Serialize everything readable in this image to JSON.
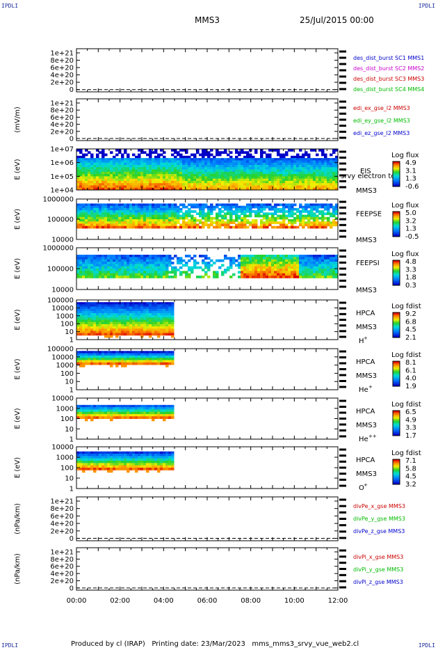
{
  "corners": {
    "tl": "IPDLI",
    "tr": "IPDLI",
    "bl": "IPDLI",
    "br": "IPDLI"
  },
  "header": {
    "mission": "MMS3",
    "datetime": "25/Jul/2015 00:00"
  },
  "footer": {
    "text": "Produced by cl (IRAP)   Printing date: 23/Mar/2023   mms_mms3_srvy_vue_web2.cl"
  },
  "colors": {
    "blue": "#0000cc",
    "magenta": "#cc00cc",
    "red": "#cc0000",
    "green": "#00bb00"
  },
  "chart_data": [
    {
      "type": "line",
      "panel": "des_dist_burst",
      "ylabel": "",
      "yticks": [
        "1e+21",
        "8e+20",
        "6e+20",
        "4e+20",
        "2e+20",
        "0"
      ],
      "legend": [
        {
          "name": "des_dist_burst SC1 MMS1",
          "color": "blue"
        },
        {
          "name": "des_dist_burst SC2 MMS2",
          "color": "magenta"
        },
        {
          "name": "des_dist_burst SC3 MMS3",
          "color": "red"
        },
        {
          "name": "des_dist_burst SC4 MMS4",
          "color": "green"
        }
      ]
    },
    {
      "type": "line",
      "panel": "edi",
      "ylabel": "(mV/m)",
      "yticks": [
        "1e+21",
        "8e+20",
        "6e+20",
        "4e+20",
        "2e+20",
        "0"
      ],
      "legend": [
        {
          "name": "edi_ex_gse_l2 MMS3",
          "color": "red"
        },
        {
          "name": "edi_ey_gse_l2 MMS3",
          "color": "green"
        },
        {
          "name": "edi_ez_gse_l2 MMS3",
          "color": "blue"
        }
      ]
    },
    {
      "type": "heatmap",
      "panel": "eis",
      "ylabel": "E (eV)",
      "yticks": [
        "1e+07",
        "1e+06",
        "1e+05",
        "1e+04"
      ],
      "right_labels": [
        "EIS",
        "srvy electron to",
        "MMS3"
      ],
      "colorbar": {
        "title": "Log flux",
        "ticks": [
          "4.9",
          "3.1",
          "1.3",
          "-0.6"
        ]
      }
    },
    {
      "type": "heatmap",
      "panel": "feepse",
      "ylabel": "E (eV)",
      "yticks": [
        "1000000",
        "100000",
        "10000"
      ],
      "right_labels": [
        "FEEPSE",
        "MMS3"
      ],
      "colorbar": {
        "title": "Log flux",
        "ticks": [
          "5.0",
          "3.2",
          "1.3",
          "-0.5"
        ]
      }
    },
    {
      "type": "heatmap",
      "panel": "feepsi",
      "ylabel": "E (eV)",
      "yticks": [
        "1000000",
        "100000",
        "10000"
      ],
      "right_labels": [
        "FEEPSI",
        "MMS3"
      ],
      "colorbar": {
        "title": "Log flux",
        "ticks": [
          "4.8",
          "3.3",
          "1.8",
          "0.3"
        ]
      }
    },
    {
      "type": "heatmap",
      "panel": "hpca_h",
      "ylabel": "E (eV)",
      "yticks": [
        "100000",
        "10000",
        "1000",
        "100",
        "10",
        "1"
      ],
      "right_labels": [
        "HPCA",
        "MMS3",
        "H+"
      ],
      "colorbar": {
        "title": "Log fdist",
        "ticks": [
          "9.2",
          "6.8",
          "4.5",
          "2.1"
        ]
      }
    },
    {
      "type": "heatmap",
      "panel": "hpca_he",
      "ylabel": "E (eV)",
      "yticks": [
        "100000",
        "10000",
        "1000",
        "100",
        "10",
        "1"
      ],
      "right_labels": [
        "HPCA",
        "MMS3",
        "He+"
      ],
      "colorbar": {
        "title": "Log fdist",
        "ticks": [
          "8.1",
          "6.1",
          "4.0",
          "1.9"
        ]
      }
    },
    {
      "type": "heatmap",
      "panel": "hpca_hepp",
      "ylabel": "E (eV)",
      "yticks": [
        "10000",
        "1000",
        "100",
        "10",
        "1"
      ],
      "right_labels": [
        "HPCA",
        "MMS3",
        "He++"
      ],
      "colorbar": {
        "title": "Log fdist",
        "ticks": [
          "6.5",
          "4.9",
          "3.3",
          "1.7"
        ]
      }
    },
    {
      "type": "heatmap",
      "panel": "hpca_o",
      "ylabel": "E (eV)",
      "yticks": [
        "10000",
        "1000",
        "100",
        "10",
        "1"
      ],
      "right_labels": [
        "HPCA",
        "MMS3",
        "O+"
      ],
      "colorbar": {
        "title": "Log fdist",
        "ticks": [
          "7.1",
          "5.8",
          "4.5",
          "3.2"
        ]
      }
    },
    {
      "type": "line",
      "panel": "divpe",
      "ylabel": "(nPa/km)",
      "yticks": [
        "1e+21",
        "8e+20",
        "6e+20",
        "4e+20",
        "2e+20",
        "0"
      ],
      "legend": [
        {
          "name": "divPe_x_gse MMS3",
          "color": "red"
        },
        {
          "name": "divPe_y_gse MMS3",
          "color": "green"
        },
        {
          "name": "divPe_z_gse MMS3",
          "color": "blue"
        }
      ]
    },
    {
      "type": "line",
      "panel": "divpi",
      "ylabel": "(nPa/km)",
      "yticks": [
        "1e+21",
        "8e+20",
        "6e+20",
        "4e+20",
        "2e+20",
        "0"
      ],
      "legend": [
        {
          "name": "divPi_x_gse MMS3",
          "color": "red"
        },
        {
          "name": "divPi_y_gse MMS3",
          "color": "green"
        },
        {
          "name": "divPi_z_gse MMS3",
          "color": "blue"
        }
      ]
    }
  ],
  "xaxis": {
    "ticks": [
      "00:00",
      "02:00",
      "04:00",
      "06:00",
      "08:00",
      "10:00",
      "12:00"
    ]
  }
}
